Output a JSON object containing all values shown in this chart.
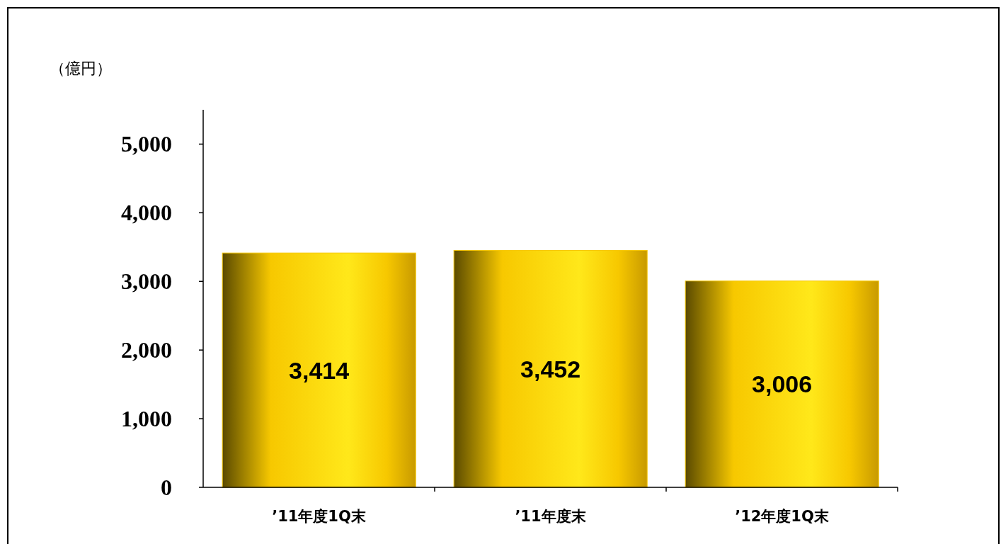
{
  "chart_data": {
    "type": "bar",
    "ylabel": "（億円）",
    "categories": [
      "’11年度1Q末",
      "’11年度末",
      "’12年度1Q末"
    ],
    "values": [
      3414,
      3452,
      3006
    ],
    "color": "#f7c800",
    "ylim": [
      0,
      5500
    ],
    "yticks": [
      0,
      {
        "value": 1000,
        "label": "1,000"
      },
      {
        "value": 2000,
        "label": "2,000"
      },
      {
        "value": 3000,
        "label": "3,000"
      },
      {
        "value": 4000,
        "label": "4,000"
      },
      {
        "value": 5000,
        "label": "5,000"
      }
    ],
    "value_labels": [
      "3,414",
      "3,452",
      "3,006"
    ]
  }
}
